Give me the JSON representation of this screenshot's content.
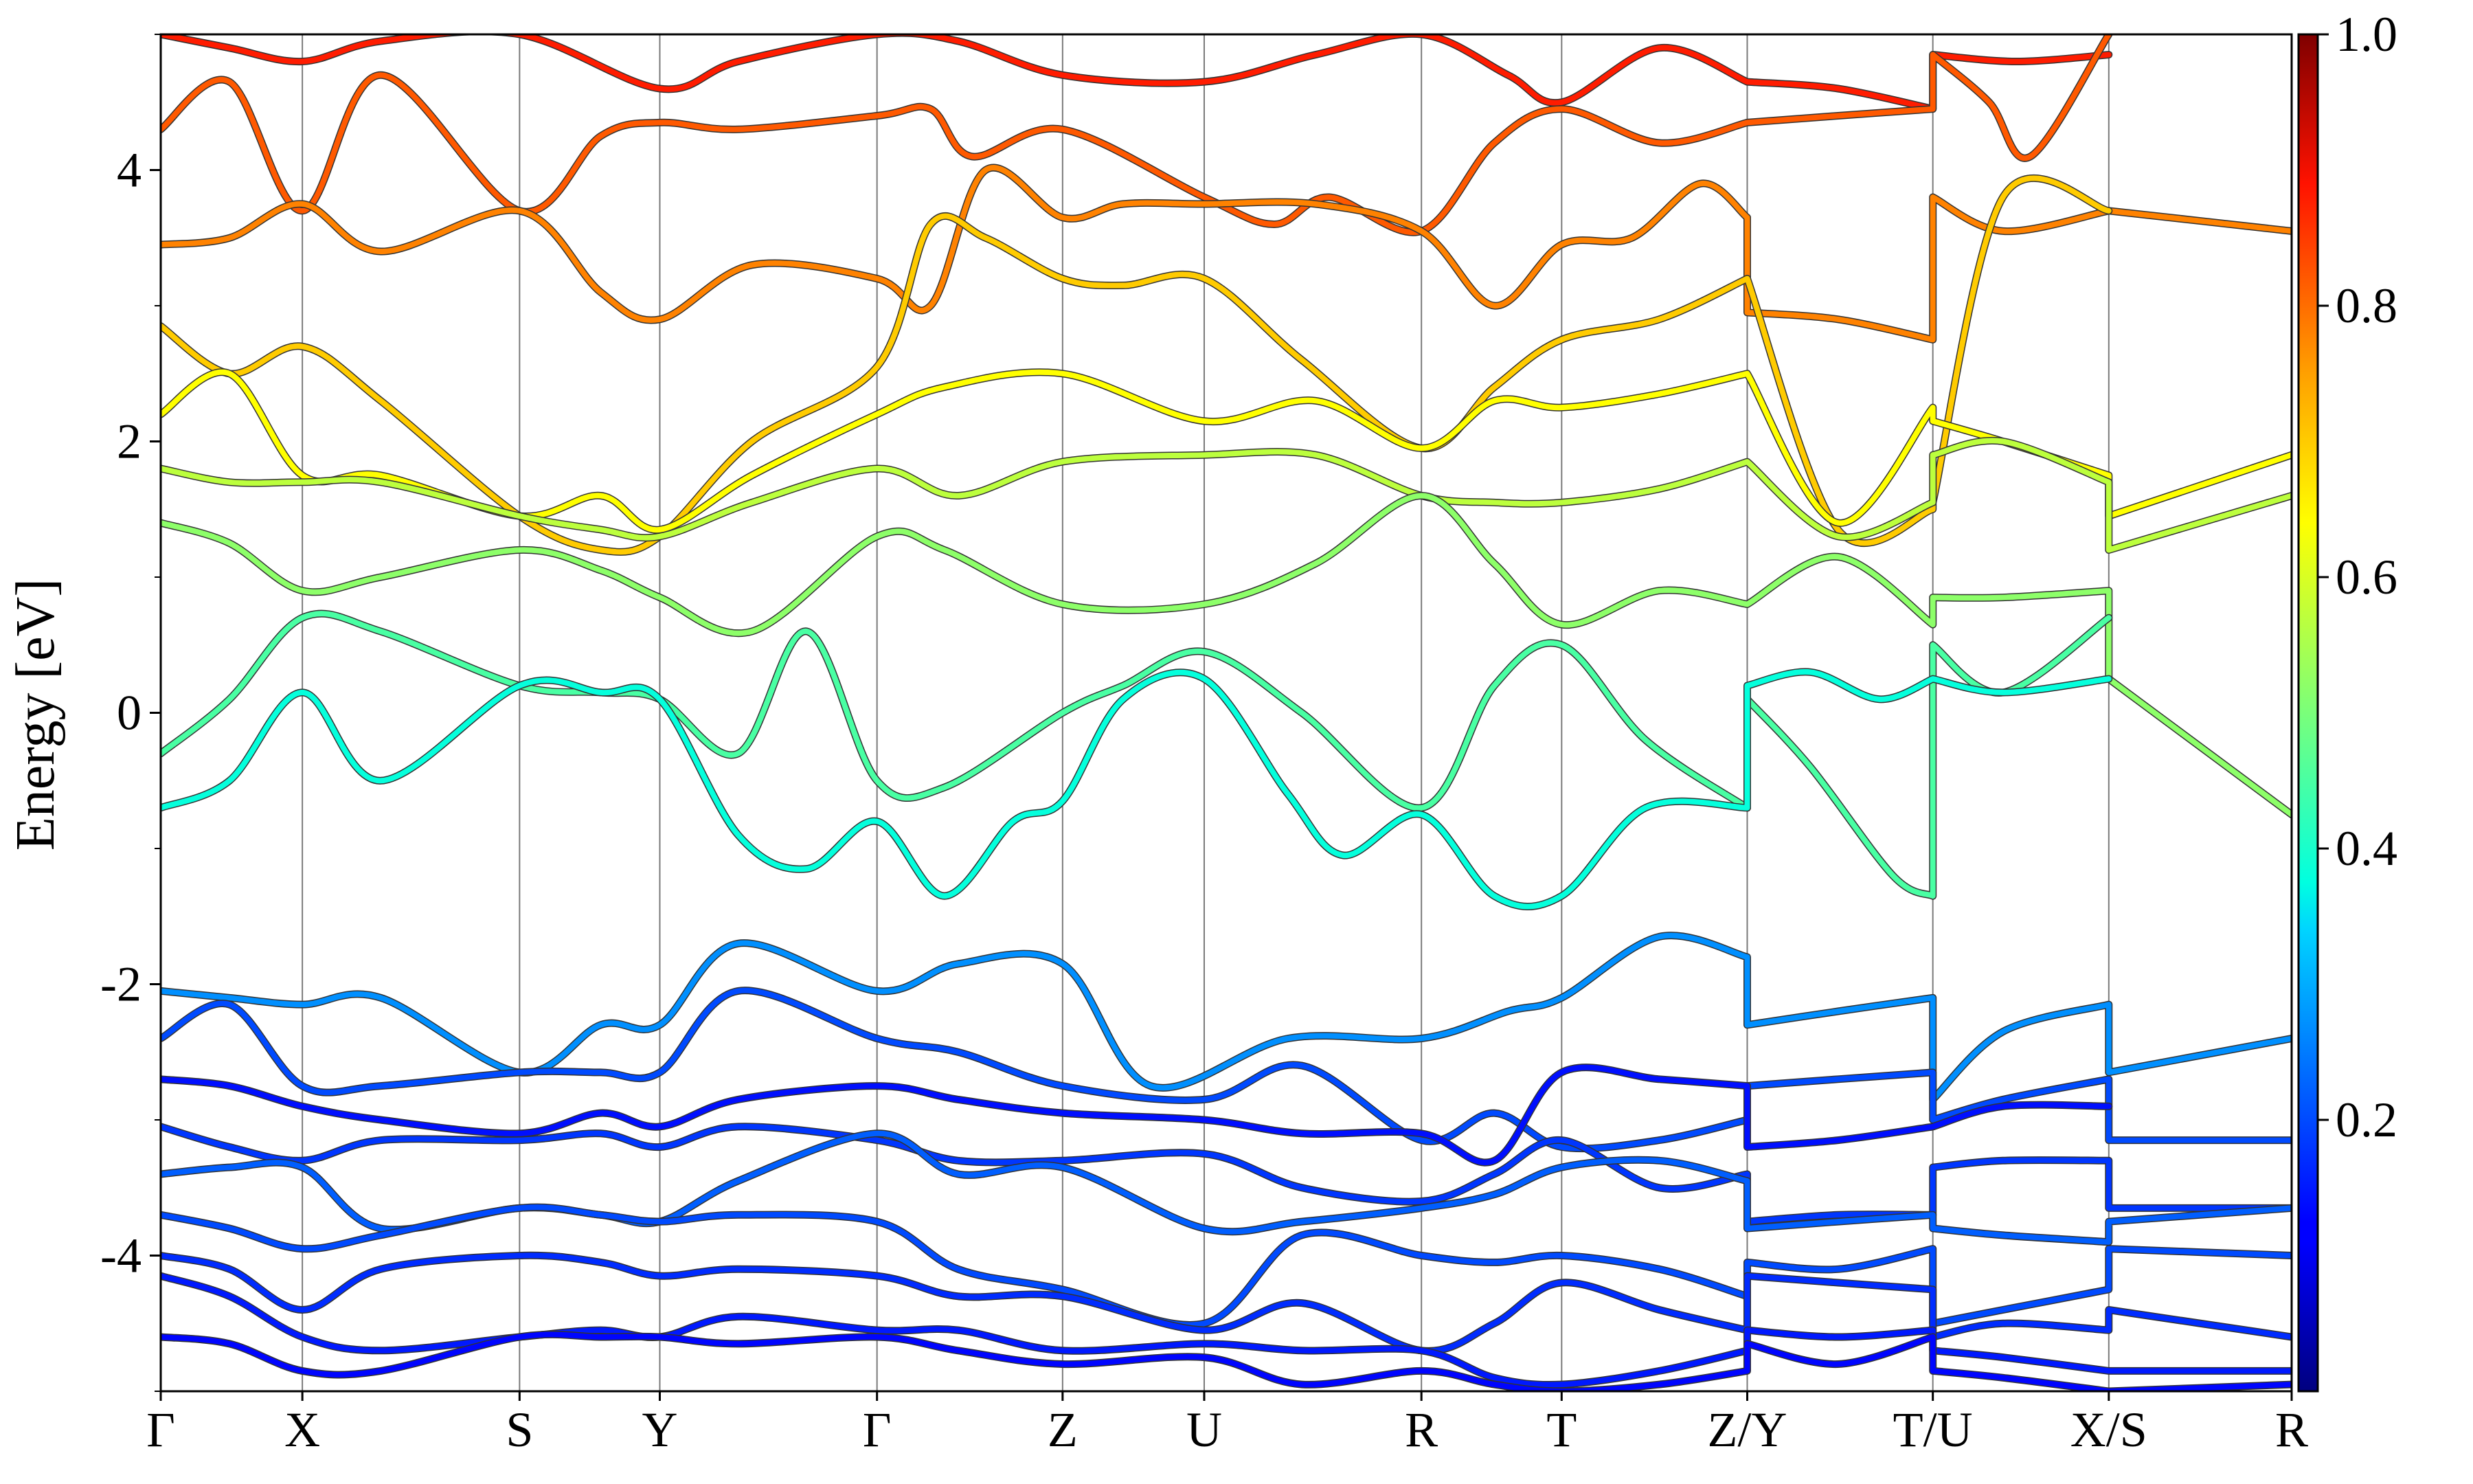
{
  "chart_data": {
    "type": "line",
    "title": "",
    "ylabel": "Energy [eV]",
    "ylim": [
      -5,
      5
    ],
    "xlim": [
      0,
      15.5
    ],
    "y_ticks": [
      -4,
      -2,
      0,
      2,
      4
    ],
    "y_tick_labels": [
      "-4",
      "-2",
      "0",
      "2",
      "4"
    ],
    "y_minor_ticks": [
      -5,
      -3,
      -1,
      1,
      3,
      5
    ],
    "k_path_ticks": [
      {
        "label": "Γ",
        "x": 0.0
      },
      {
        "label": "X",
        "x": 1.03
      },
      {
        "label": "S",
        "x": 2.61
      },
      {
        "label": "Y",
        "x": 3.63
      },
      {
        "label": "Γ",
        "x": 5.21
      },
      {
        "label": "Z",
        "x": 6.56
      },
      {
        "label": "U",
        "x": 7.59
      },
      {
        "label": "R",
        "x": 9.17
      },
      {
        "label": "T",
        "x": 10.19
      },
      {
        "label": "Z/Y",
        "x": 11.54
      },
      {
        "label": "T/U",
        "x": 12.89
      },
      {
        "label": "X/S",
        "x": 14.17
      },
      {
        "label": "R",
        "x": 15.5
      }
    ],
    "colorbar": {
      "colormap": "jet",
      "range": [
        0.0,
        1.0
      ],
      "ticks": [
        0.2,
        0.4,
        0.6,
        0.8,
        1.0
      ],
      "tick_labels": [
        "0.2",
        "0.4",
        "0.6",
        "0.8",
        "1.0"
      ]
    },
    "bands": [
      {
        "w": 0.88,
        "x": [
          0,
          0.5,
          1.03,
          1.6,
          2.61,
          3.63,
          4.2,
          5.21,
          5.8,
          6.56,
          7.59,
          8.4,
          9.17,
          9.8,
          10.19,
          10.9,
          11.54,
          11.54,
          12.2,
          12.89,
          12.89,
          13.5,
          14.17
        ],
        "y": [
          5.0,
          4.9,
          4.8,
          4.95,
          5.0,
          4.6,
          4.8,
          5.0,
          4.95,
          4.7,
          4.65,
          4.85,
          5.0,
          4.7,
          4.5,
          4.9,
          4.65,
          4.65,
          4.6,
          4.45,
          4.85,
          4.8,
          4.85
        ]
      },
      {
        "w": 0.82,
        "x": [
          0,
          0.5,
          1.03,
          1.6,
          2.61,
          3.2,
          3.63,
          4.2,
          5.21,
          5.6,
          5.9,
          6.56,
          7.59,
          8.1,
          8.5,
          9.17,
          9.7,
          10.19,
          10.9,
          11.54,
          11.54,
          12.2,
          12.89,
          12.89,
          13.3,
          13.6,
          14.17
        ],
        "y": [
          4.3,
          4.65,
          3.7,
          4.7,
          3.7,
          4.25,
          4.35,
          4.3,
          4.4,
          4.45,
          4.1,
          4.3,
          3.8,
          3.6,
          3.8,
          3.55,
          4.2,
          4.45,
          4.2,
          4.35,
          4.35,
          4.4,
          4.45,
          4.85,
          4.5,
          4.1,
          5.0
        ]
      },
      {
        "w": 0.78,
        "x": [
          0,
          0.5,
          1.03,
          1.6,
          2.61,
          3.2,
          3.63,
          4.3,
          5.21,
          5.6,
          6.0,
          6.56,
          7.0,
          7.59,
          8.4,
          9.17,
          9.7,
          10.19,
          10.7,
          11.2,
          11.54,
          11.54,
          12.2,
          12.89,
          12.89,
          13.4,
          14.17,
          14.17,
          15.5
        ],
        "y": [
          3.45,
          3.5,
          3.75,
          3.4,
          3.7,
          3.1,
          2.9,
          3.3,
          3.2,
          3.0,
          4.0,
          3.65,
          3.75,
          3.75,
          3.75,
          3.55,
          3.0,
          3.45,
          3.5,
          3.9,
          3.65,
          2.95,
          2.9,
          2.75,
          3.8,
          3.55,
          3.7,
          3.7,
          3.55
        ]
      },
      {
        "w": 0.7,
        "x": [
          0,
          0.5,
          1.03,
          1.6,
          2.61,
          3.2,
          3.63,
          4.3,
          5.21,
          5.6,
          6.0,
          6.56,
          7.0,
          7.59,
          8.3,
          9.17,
          9.7,
          10.19,
          10.9,
          11.54,
          11.54,
          12.2,
          12.89,
          12.89,
          13.4,
          14.17
        ],
        "y": [
          2.85,
          2.5,
          2.7,
          2.3,
          1.45,
          1.2,
          1.3,
          2.0,
          2.55,
          3.6,
          3.5,
          3.2,
          3.15,
          3.2,
          2.6,
          1.95,
          2.4,
          2.75,
          2.9,
          3.2,
          3.2,
          1.35,
          1.5,
          1.55,
          3.8,
          3.7
        ]
      },
      {
        "w": 0.64,
        "x": [
          0,
          0.5,
          1.03,
          1.6,
          2.61,
          3.2,
          3.63,
          4.3,
          5.21,
          5.7,
          6.56,
          7.59,
          8.4,
          9.17,
          9.7,
          10.19,
          10.9,
          11.54,
          11.54,
          12.2,
          12.89,
          12.89,
          13.4,
          14.17,
          14.17,
          15.5
        ],
        "y": [
          2.2,
          2.5,
          1.75,
          1.75,
          1.45,
          1.6,
          1.35,
          1.75,
          2.2,
          2.4,
          2.5,
          2.15,
          2.3,
          1.95,
          2.3,
          2.25,
          2.35,
          2.5,
          2.5,
          1.4,
          2.25,
          2.15,
          2.0,
          1.75,
          1.45,
          1.9
        ]
      },
      {
        "w": 0.57,
        "x": [
          0,
          0.5,
          1.03,
          1.6,
          2.61,
          3.2,
          3.63,
          4.3,
          5.21,
          5.8,
          6.56,
          7.59,
          8.4,
          9.17,
          9.7,
          10.19,
          10.9,
          11.54,
          11.54,
          12.2,
          12.89,
          12.89,
          13.4,
          14.17,
          14.17,
          15.5
        ],
        "y": [
          1.8,
          1.7,
          1.7,
          1.7,
          1.45,
          1.35,
          1.3,
          1.55,
          1.8,
          1.6,
          1.85,
          1.9,
          1.9,
          1.6,
          1.55,
          1.55,
          1.65,
          1.85,
          1.85,
          1.3,
          1.55,
          1.9,
          2.0,
          1.7,
          1.2,
          1.6
        ]
      },
      {
        "w": 0.52,
        "x": [
          0,
          0.5,
          1.03,
          1.6,
          2.61,
          3.2,
          3.63,
          4.3,
          5.21,
          5.7,
          6.56,
          7.59,
          8.4,
          9.17,
          9.7,
          10.19,
          10.9,
          11.54,
          11.54,
          12.2,
          12.89,
          12.89,
          13.4,
          14.17,
          14.17,
          15.5
        ],
        "y": [
          1.4,
          1.25,
          0.9,
          1.0,
          1.2,
          1.05,
          0.85,
          0.6,
          1.3,
          1.2,
          0.8,
          0.8,
          1.1,
          1.6,
          1.1,
          0.65,
          0.9,
          0.8,
          0.8,
          1.15,
          0.65,
          0.85,
          0.85,
          0.9,
          0.25,
          -0.75
        ]
      },
      {
        "w": 0.45,
        "x": [
          0,
          0.5,
          1.03,
          1.6,
          2.61,
          3.2,
          3.63,
          4.2,
          4.7,
          5.21,
          5.7,
          6.56,
          7.0,
          7.59,
          8.3,
          9.17,
          9.7,
          10.19,
          10.8,
          11.54,
          11.54,
          12.0,
          12.6,
          12.89,
          12.89,
          13.4,
          14.17
        ],
        "y": [
          -0.3,
          0.1,
          0.7,
          0.6,
          0.2,
          0.15,
          0.1,
          -0.3,
          0.6,
          -0.5,
          -0.55,
          0.0,
          0.2,
          0.45,
          0.0,
          -0.7,
          0.2,
          0.5,
          -0.2,
          -0.7,
          0.1,
          -0.4,
          -1.2,
          -1.35,
          0.5,
          0.15,
          0.7
        ]
      },
      {
        "w": 0.38,
        "x": [
          0,
          0.5,
          1.03,
          1.6,
          2.61,
          3.2,
          3.63,
          4.2,
          4.7,
          5.21,
          5.7,
          6.2,
          6.56,
          7.0,
          7.59,
          8.2,
          8.6,
          9.17,
          9.7,
          10.19,
          10.8,
          11.54,
          11.54,
          12.0,
          12.5,
          12.89,
          12.89,
          13.4,
          14.17
        ],
        "y": [
          -0.7,
          -0.5,
          0.15,
          -0.5,
          0.2,
          0.15,
          0.1,
          -0.9,
          -1.15,
          -0.8,
          -1.35,
          -0.8,
          -0.65,
          0.1,
          0.25,
          -0.6,
          -1.05,
          -0.75,
          -1.35,
          -1.35,
          -0.7,
          -0.7,
          0.2,
          0.3,
          0.1,
          0.25,
          0.25,
          0.15,
          0.25
        ]
      },
      {
        "w": 0.27,
        "x": [
          0,
          0.5,
          1.03,
          1.6,
          2.61,
          3.2,
          3.63,
          4.2,
          5.21,
          5.8,
          6.56,
          7.2,
          8.2,
          9.17,
          9.8,
          10.19,
          10.9,
          11.54,
          11.54,
          12.2,
          12.89,
          12.89,
          13.4,
          14.17,
          14.17,
          15.5
        ],
        "y": [
          -2.05,
          -2.1,
          -2.15,
          -2.1,
          -2.65,
          -2.3,
          -2.3,
          -1.7,
          -2.05,
          -1.85,
          -1.85,
          -2.75,
          -2.4,
          -2.4,
          -2.2,
          -2.1,
          -1.65,
          -1.8,
          -2.3,
          -2.2,
          -2.1,
          -2.85,
          -2.35,
          -2.15,
          -2.65,
          -2.4
        ]
      },
      {
        "w": 0.2,
        "x": [
          0,
          0.5,
          1.03,
          1.6,
          2.61,
          3.2,
          3.63,
          4.2,
          5.21,
          5.8,
          6.56,
          7.59,
          8.3,
          9.17,
          9.7,
          10.19,
          10.9,
          11.54,
          11.54,
          12.2,
          12.89,
          12.89,
          13.4,
          14.17,
          14.17,
          15.5
        ],
        "y": [
          -2.4,
          -2.15,
          -2.75,
          -2.75,
          -2.65,
          -2.65,
          -2.65,
          -2.05,
          -2.4,
          -2.5,
          -2.75,
          -2.85,
          -2.6,
          -3.15,
          -2.95,
          -3.2,
          -3.15,
          -3.0,
          -2.75,
          -2.7,
          -2.65,
          -3.0,
          -2.85,
          -2.7,
          -3.15,
          -3.15
        ]
      },
      {
        "w": 0.14,
        "x": [
          0,
          0.5,
          1.03,
          1.6,
          2.61,
          3.2,
          3.63,
          4.2,
          5.21,
          5.8,
          6.56,
          7.59,
          8.3,
          9.17,
          9.7,
          10.19,
          10.9,
          11.54,
          11.54,
          12.2,
          12.89,
          12.89,
          13.4,
          14.17
        ],
        "y": [
          -2.7,
          -2.75,
          -2.9,
          -3.0,
          -3.1,
          -2.95,
          -3.05,
          -2.85,
          -2.75,
          -2.85,
          -2.95,
          -3.0,
          -3.1,
          -3.1,
          -3.3,
          -2.65,
          -2.7,
          -2.75,
          -3.2,
          -3.15,
          -3.05,
          -3.05,
          -2.9,
          -2.9
        ]
      },
      {
        "w": 0.18,
        "x": [
          0,
          0.5,
          1.03,
          1.6,
          2.61,
          3.2,
          3.63,
          4.2,
          5.21,
          5.8,
          6.56,
          7.59,
          8.3,
          9.17,
          9.7,
          10.19,
          10.9,
          11.54,
          11.54,
          12.2,
          12.89,
          12.89,
          13.4,
          14.17,
          14.17,
          15.5
        ],
        "y": [
          -3.05,
          -3.2,
          -3.3,
          -3.15,
          -3.15,
          -3.1,
          -3.2,
          -3.05,
          -3.15,
          -3.3,
          -3.3,
          -3.25,
          -3.5,
          -3.6,
          -3.4,
          -3.15,
          -3.5,
          -3.4,
          -3.75,
          -3.7,
          -3.7,
          -3.35,
          -3.3,
          -3.3,
          -3.65,
          -3.65
        ]
      },
      {
        "w": 0.22,
        "x": [
          0,
          0.5,
          1.03,
          1.6,
          2.61,
          3.2,
          3.63,
          4.2,
          5.21,
          5.8,
          6.56,
          7.59,
          8.3,
          9.17,
          9.7,
          10.19,
          10.9,
          11.54,
          11.54,
          12.2,
          12.89,
          12.89,
          13.4,
          14.17,
          14.17,
          15.5
        ],
        "y": [
          -3.4,
          -3.35,
          -3.35,
          -3.8,
          -3.65,
          -3.7,
          -3.75,
          -3.45,
          -3.1,
          -3.4,
          -3.35,
          -3.8,
          -3.75,
          -3.65,
          -3.55,
          -3.35,
          -3.3,
          -3.45,
          -3.8,
          -3.75,
          -3.7,
          -3.8,
          -3.85,
          -3.9,
          -3.75,
          -3.65
        ]
      },
      {
        "w": 0.2,
        "x": [
          0,
          0.5,
          1.03,
          1.6,
          2.61,
          3.2,
          3.63,
          4.2,
          5.21,
          5.8,
          6.56,
          7.59,
          8.3,
          9.17,
          9.7,
          10.19,
          10.9,
          11.54,
          11.54,
          12.2,
          12.89,
          12.89,
          13.4,
          14.17,
          14.17,
          15.5
        ],
        "y": [
          -3.7,
          -3.8,
          -3.95,
          -3.85,
          -3.65,
          -3.7,
          -3.75,
          -3.7,
          -3.75,
          -4.1,
          -4.25,
          -4.5,
          -3.85,
          -4.0,
          -4.05,
          -4.0,
          -4.1,
          -4.3,
          -4.05,
          -4.1,
          -3.95,
          -4.5,
          -4.4,
          -4.25,
          -3.95,
          -4.0
        ]
      },
      {
        "w": 0.17,
        "x": [
          0,
          0.5,
          1.03,
          1.6,
          2.61,
          3.2,
          3.63,
          4.2,
          5.21,
          5.8,
          6.56,
          7.59,
          8.3,
          9.17,
          9.7,
          10.19,
          10.9,
          11.54,
          11.54,
          12.2,
          12.89,
          12.89,
          13.4,
          14.17,
          14.17,
          15.5
        ],
        "y": [
          -4.0,
          -4.1,
          -4.4,
          -4.1,
          -4.0,
          -4.05,
          -4.15,
          -4.1,
          -4.15,
          -4.3,
          -4.3,
          -4.55,
          -4.35,
          -4.7,
          -4.5,
          -4.2,
          -4.4,
          -4.55,
          -4.15,
          -4.2,
          -4.25,
          -4.6,
          -4.5,
          -4.55,
          -4.4,
          -4.6
        ]
      },
      {
        "w": 0.15,
        "x": [
          0,
          0.5,
          1.03,
          1.6,
          2.61,
          3.2,
          3.63,
          4.2,
          5.21,
          5.8,
          6.56,
          7.59,
          8.3,
          9.17,
          9.7,
          10.19,
          10.9,
          11.54,
          11.54,
          12.2,
          12.89,
          12.89,
          13.4,
          14.17,
          14.17,
          15.5
        ],
        "y": [
          -4.15,
          -4.3,
          -4.6,
          -4.7,
          -4.6,
          -4.55,
          -4.6,
          -4.45,
          -4.55,
          -4.55,
          -4.7,
          -4.65,
          -4.7,
          -4.7,
          -4.9,
          -4.95,
          -4.85,
          -4.7,
          -4.55,
          -4.6,
          -4.55,
          -4.7,
          -4.75,
          -4.85,
          -4.85,
          -4.85
        ]
      },
      {
        "w": 0.13,
        "x": [
          0,
          0.5,
          1.03,
          1.6,
          2.61,
          3.2,
          3.63,
          4.2,
          5.21,
          5.8,
          6.56,
          7.59,
          8.3,
          9.17,
          9.7,
          10.19,
          10.9,
          11.54,
          11.54,
          12.2,
          12.89,
          12.89,
          13.4,
          14.17,
          14.17,
          15.5
        ],
        "y": [
          -4.6,
          -4.65,
          -4.85,
          -4.85,
          -4.6,
          -4.6,
          -4.6,
          -4.65,
          -4.6,
          -4.7,
          -4.8,
          -4.75,
          -4.95,
          -4.85,
          -4.95,
          -5.0,
          -4.95,
          -4.85,
          -4.65,
          -4.8,
          -4.6,
          -4.85,
          -4.9,
          -5.0,
          -5.0,
          -4.95
        ]
      }
    ]
  }
}
